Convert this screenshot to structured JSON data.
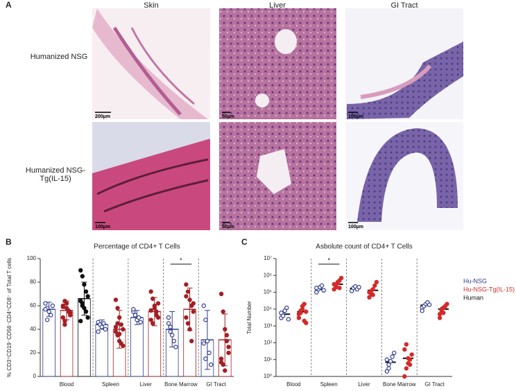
{
  "panel_a": {
    "label": "A",
    "columns": [
      "Skin",
      "Liver",
      "GI Tract"
    ],
    "rows": [
      "Humanized NSG",
      "Humanized NSG-Tg(IL-15)"
    ],
    "scale_bars": [
      [
        "200µm",
        "50µm",
        "100µm"
      ],
      [
        "100µm",
        "50µm",
        "100µm"
      ]
    ]
  },
  "chart_data": [
    {
      "type": "bar",
      "panel_label": "B",
      "title": "Percentage of CD4+ T Cells",
      "y_label": "% CD3⁺CD19⁻CD56⁻CD4⁺CD8⁻ of Total T cells",
      "categories": [
        "Blood",
        "Spleen",
        "Liver",
        "Bone Marrow",
        "GI Tract"
      ],
      "ylim": [
        0,
        100
      ],
      "yticks": [
        0,
        20,
        40,
        60,
        80,
        100
      ],
      "separators": true,
      "annotations": [
        {
          "text": "*",
          "category": "Bone Marrow"
        }
      ],
      "series": [
        {
          "name": "Hu-NSG",
          "color": "#2e3a8c",
          "values": [
            57,
            44,
            50,
            40,
            31
          ],
          "errors": [
            6,
            4,
            6,
            15,
            25
          ],
          "points": [
            [
              62,
              58,
              55,
              52,
              60,
              57,
              48
            ],
            [
              46,
              44,
              42,
              45,
              40,
              38
            ],
            [
              55,
              52,
              48,
              50,
              46,
              57
            ],
            [
              50,
              42,
              35,
              30,
              25,
              45,
              38
            ],
            [
              60,
              48,
              30,
              20,
              10,
              28,
              15
            ]
          ]
        },
        {
          "name": "Hu-NSG-Tg(IL-15)",
          "color": "#a31f24",
          "values": [
            56,
            40,
            55,
            57,
            31
          ],
          "errors": [
            8,
            16,
            12,
            18,
            22
          ],
          "points": [
            [
              60,
              64,
              58,
              55,
              52,
              50,
              47,
              62,
              56,
              54,
              59,
              44
            ],
            [
              65,
              58,
              50,
              44,
              40,
              38,
              35,
              30,
              28,
              26,
              42,
              45,
              36
            ],
            [
              72,
              66,
              60,
              55,
              50,
              48,
              45,
              58,
              52,
              62,
              56
            ],
            [
              78,
              72,
              65,
              60,
              55,
              50,
              45,
              40,
              30,
              62,
              68
            ],
            [
              70,
              55,
              40,
              30,
              20,
              15,
              10,
              5,
              35,
              25,
              12
            ]
          ]
        },
        {
          "name": "Human",
          "color": "#111111",
          "values": [
            66,
            null,
            null,
            null,
            null
          ],
          "errors": [
            14,
            null,
            null,
            null,
            null
          ],
          "points": [
            [
              90,
              85,
              78,
              72,
              68,
              64,
              60,
              58,
              55,
              50,
              47,
              62
            ],
            [],
            [],
            [],
            []
          ]
        }
      ]
    },
    {
      "type": "dot",
      "panel_label": "C",
      "title": "Asbolute count of CD4+ T Cells",
      "y_label": "Total Number",
      "log_scale": true,
      "categories": [
        "Blood",
        "Spleen",
        "Liver",
        "Bone Marrow",
        "GI Tract"
      ],
      "ylim": [
        1,
        10000000
      ],
      "yticks": [
        {
          "value": 1,
          "label": "10⁰"
        },
        {
          "value": 10,
          "label": "10¹"
        },
        {
          "value": 100,
          "label": "10²"
        },
        {
          "value": 1000,
          "label": "10³"
        },
        {
          "value": 10000,
          "label": "10⁴"
        },
        {
          "value": 100000,
          "label": "10⁵"
        },
        {
          "value": 1000000,
          "label": "10⁶"
        },
        {
          "value": 10000000,
          "label": "10⁷"
        }
      ],
      "separators": true,
      "legend": "right",
      "annotations": [
        {
          "text": "*",
          "category": "Spleen"
        }
      ],
      "series": [
        {
          "name": "Hu-NSG",
          "color": "#2e3a8c",
          "values": [
            5000,
            150000,
            170000,
            7,
            17000
          ],
          "points": [
            [
              3000,
              5000,
              8000,
              12000,
              2500,
              6000,
              4000
            ],
            [
              100000,
              150000,
              200000,
              250000,
              130000,
              180000
            ],
            [
              120000,
              180000,
              220000,
              150000,
              200000
            ],
            [
              2,
              5,
              8,
              15,
              25,
              10,
              3
            ],
            [
              12000,
              15000,
              20000,
              25000,
              18000,
              8000
            ]
          ]
        },
        {
          "name": "Hu-NSG-Tg(IL-15)",
          "color": "#d42a2a",
          "values": [
            7000,
            300000,
            130000,
            12,
            10000
          ],
          "points": [
            [
              3000,
              8000,
              15000,
              20000,
              1500,
              5000,
              6000,
              10000,
              2000,
              7000
            ],
            [
              150000,
              250000,
              350000,
              500000,
              700000,
              300000,
              200000,
              400000,
              180000
            ],
            [
              50000,
              80000,
              150000,
              250000,
              400000,
              100000,
              120000,
              70000
            ],
            [
              1,
              3,
              6,
              10,
              20,
              40,
              80,
              12,
              5
            ],
            [
              5000,
              8000,
              12000,
              15000,
              20000,
              3000,
              10000,
              6000
            ]
          ]
        },
        {
          "name": "Human",
          "color": "#111111",
          "values": [
            null,
            null,
            null,
            null,
            null
          ],
          "points": [
            [],
            [],
            [],
            [],
            []
          ]
        }
      ]
    }
  ]
}
